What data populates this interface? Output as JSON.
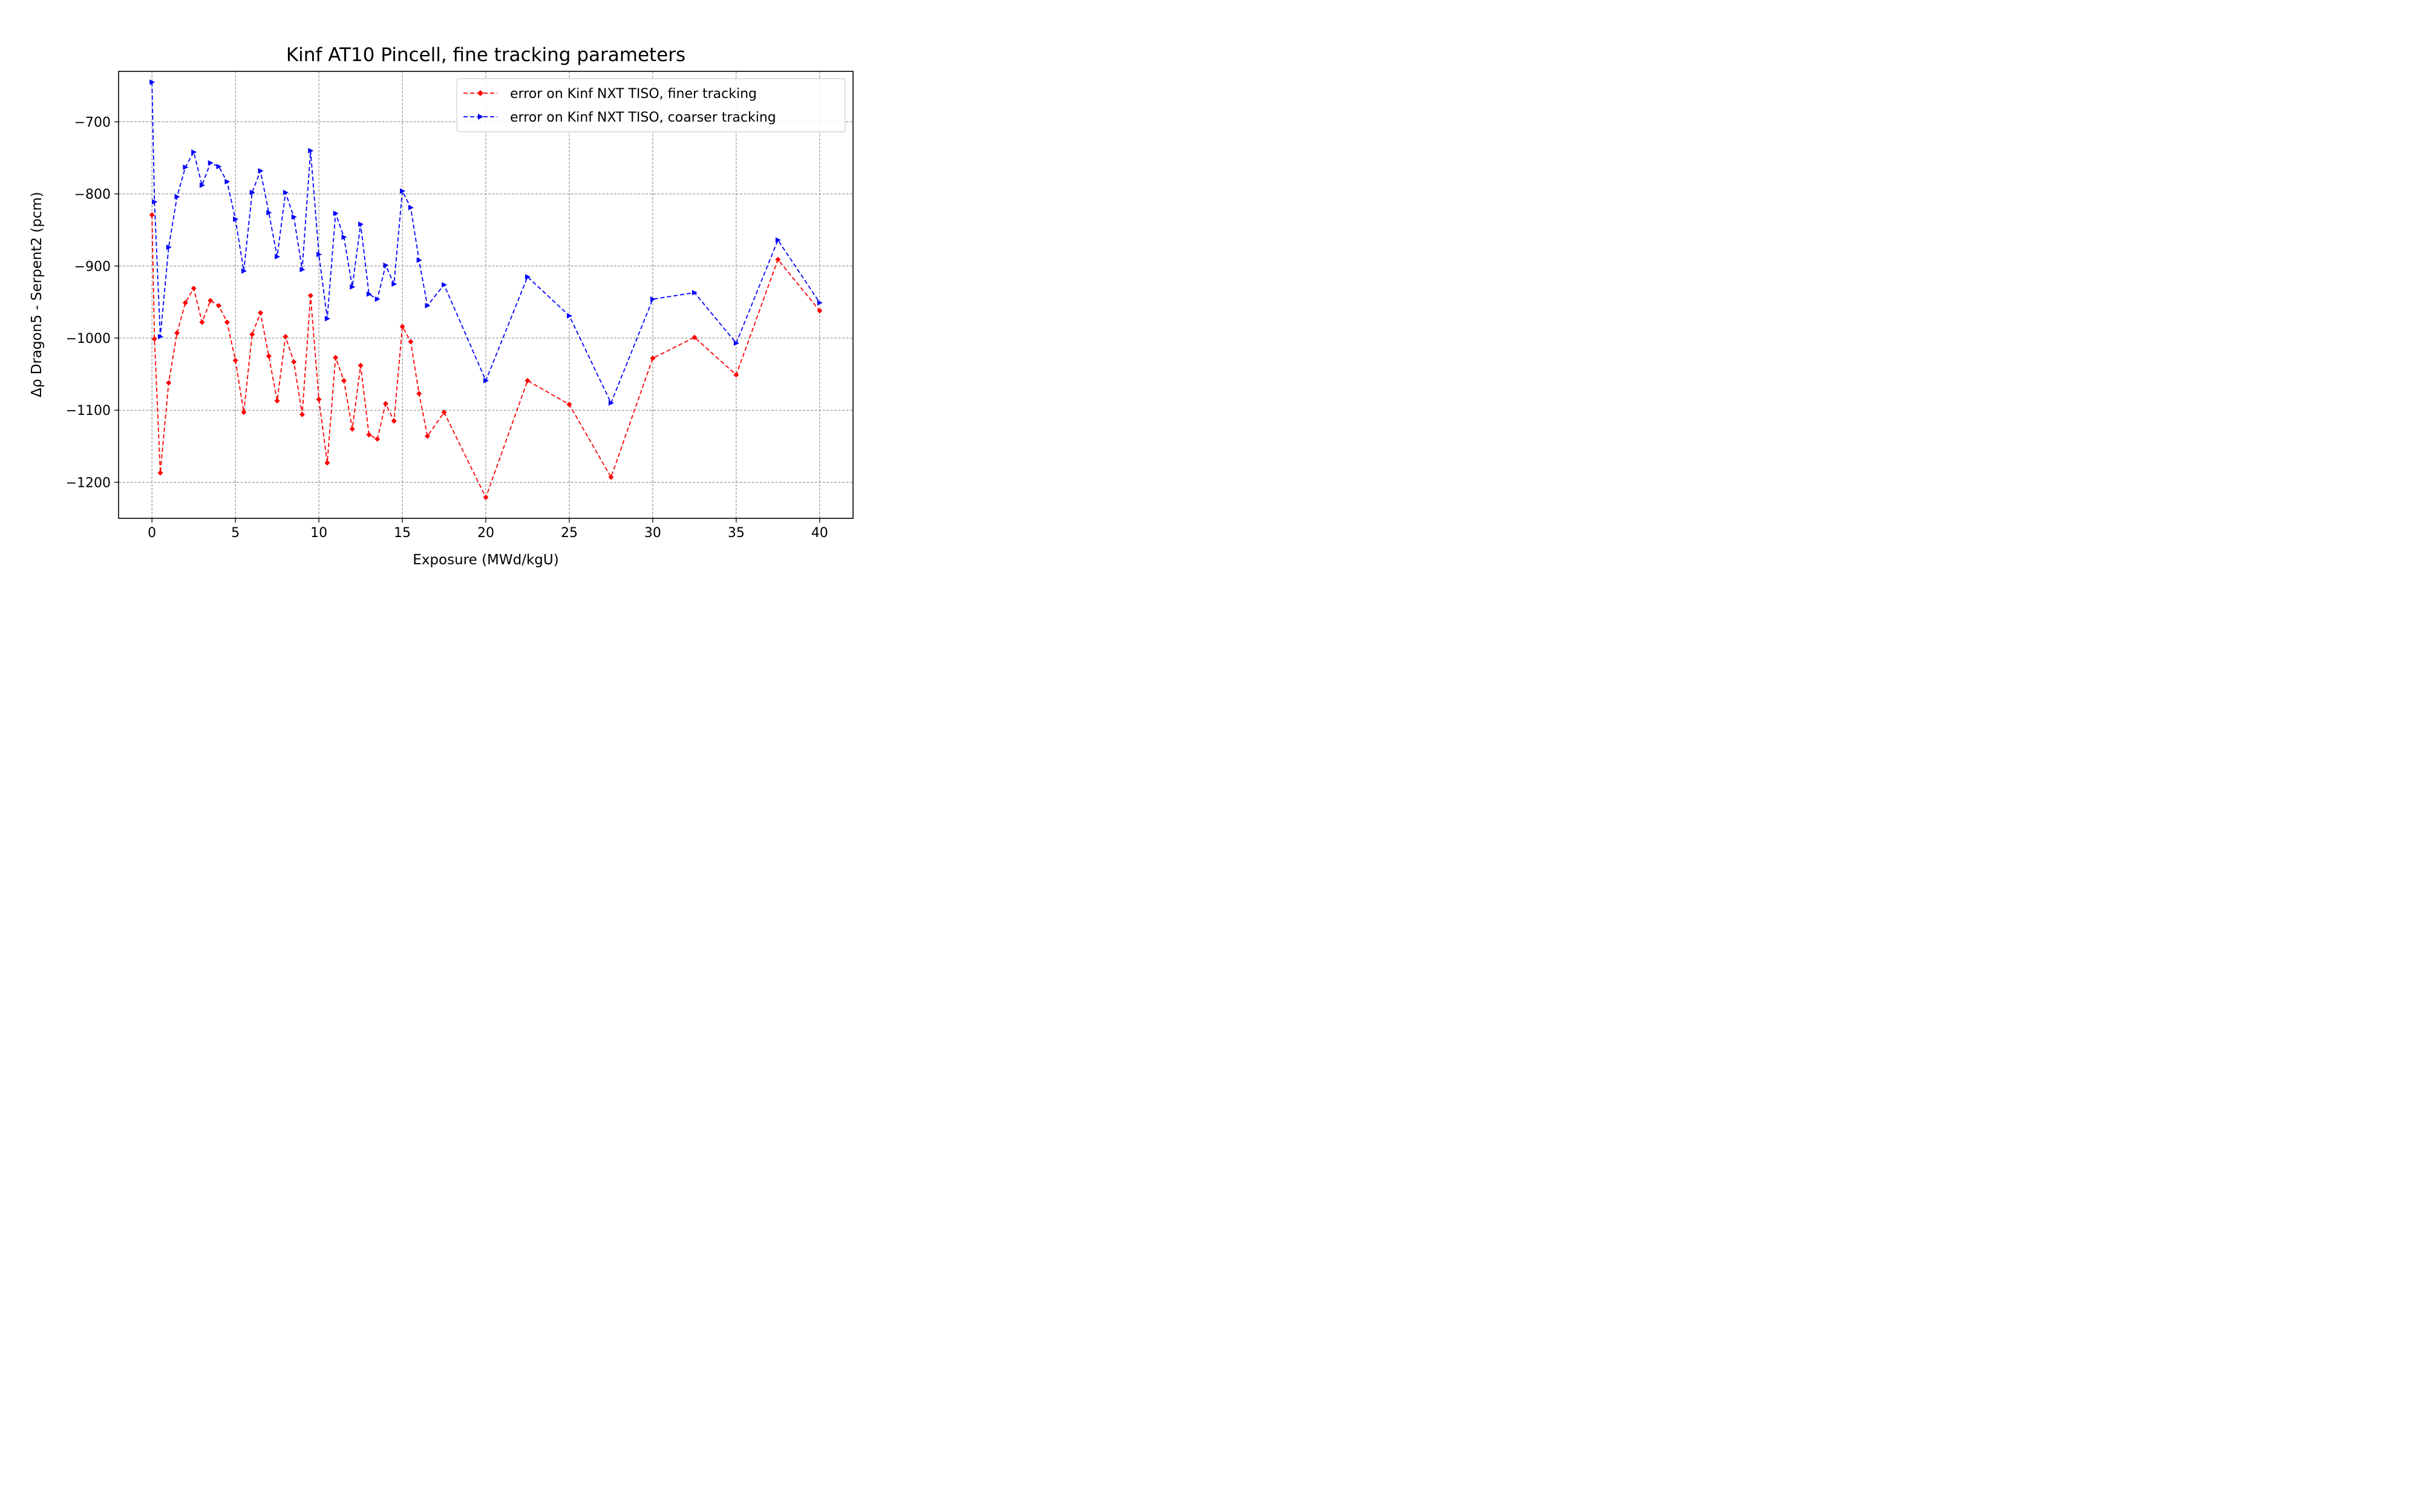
{
  "chart_data": {
    "type": "line",
    "title": "Kinf AT10 Pincell, fine tracking parameters",
    "xlabel": "Exposure (MWd/kgU)",
    "ylabel": "Δρ Dragon5 - Serpent2 (pcm)",
    "xlim": [
      -2.0,
      42.0
    ],
    "ylim": [
      -1250,
      -630
    ],
    "xticks": [
      0,
      5,
      10,
      15,
      20,
      25,
      30,
      35,
      40
    ],
    "yticks": [
      -1200,
      -1100,
      -1000,
      -900,
      -800,
      -700
    ],
    "xtick_labels": [
      "0",
      "5",
      "10",
      "15",
      "20",
      "25",
      "30",
      "35",
      "40"
    ],
    "ytick_labels": [
      "−1200",
      "−1100",
      "−1000",
      "−900",
      "−800",
      "−700"
    ],
    "grid": true,
    "legend_position": "top-right",
    "x": [
      0,
      0.15,
      0.5,
      1,
      1.5,
      2,
      2.5,
      3,
      3.5,
      4,
      4.5,
      5,
      5.5,
      6,
      6.5,
      7,
      7.5,
      8,
      8.5,
      9,
      9.5,
      10,
      10.5,
      11,
      11.5,
      12,
      12.5,
      13,
      13.5,
      14,
      14.5,
      15,
      15.5,
      16,
      16.5,
      17.5,
      20,
      22.5,
      25,
      27.5,
      30,
      32.5,
      35,
      37.5,
      40
    ],
    "series": [
      {
        "name": "error on Kinf NXT TISO, finer tracking",
        "color": "#ff0000",
        "marker": "diamond",
        "linestyle": "dashed",
        "values": [
          -829,
          -1001,
          -1187,
          -1062,
          -993,
          -951,
          -931,
          -978,
          -948,
          -955,
          -978,
          -1031,
          -1103,
          -995,
          -965,
          -1025,
          -1087,
          -998,
          -1033,
          -1106,
          -941,
          -1085,
          -1173,
          -1027,
          -1059,
          -1126,
          -1038,
          -1134,
          -1140,
          -1091,
          -1115,
          -984,
          -1005,
          -1077,
          -1136,
          -1103,
          -1221,
          -1059,
          -1092,
          -1193,
          -1028,
          -999,
          -1051,
          -891,
          -962
        ]
      },
      {
        "name": "error on Kinf NXT TISO, coarser tracking",
        "color": "#0000ff",
        "marker": "triangle-right",
        "linestyle": "dashed",
        "values": [
          -645,
          -811,
          -998,
          -874,
          -804,
          -763,
          -742,
          -788,
          -757,
          -762,
          -783,
          -835,
          -907,
          -798,
          -768,
          -826,
          -887,
          -798,
          -832,
          -905,
          -740,
          -884,
          -973,
          -827,
          -860,
          -929,
          -842,
          -939,
          -946,
          -899,
          -925,
          -796,
          -819,
          -892,
          -955,
          -926,
          -1059,
          -915,
          -969,
          -1090,
          -946,
          -937,
          -1007,
          -864,
          -951
        ]
      }
    ]
  }
}
